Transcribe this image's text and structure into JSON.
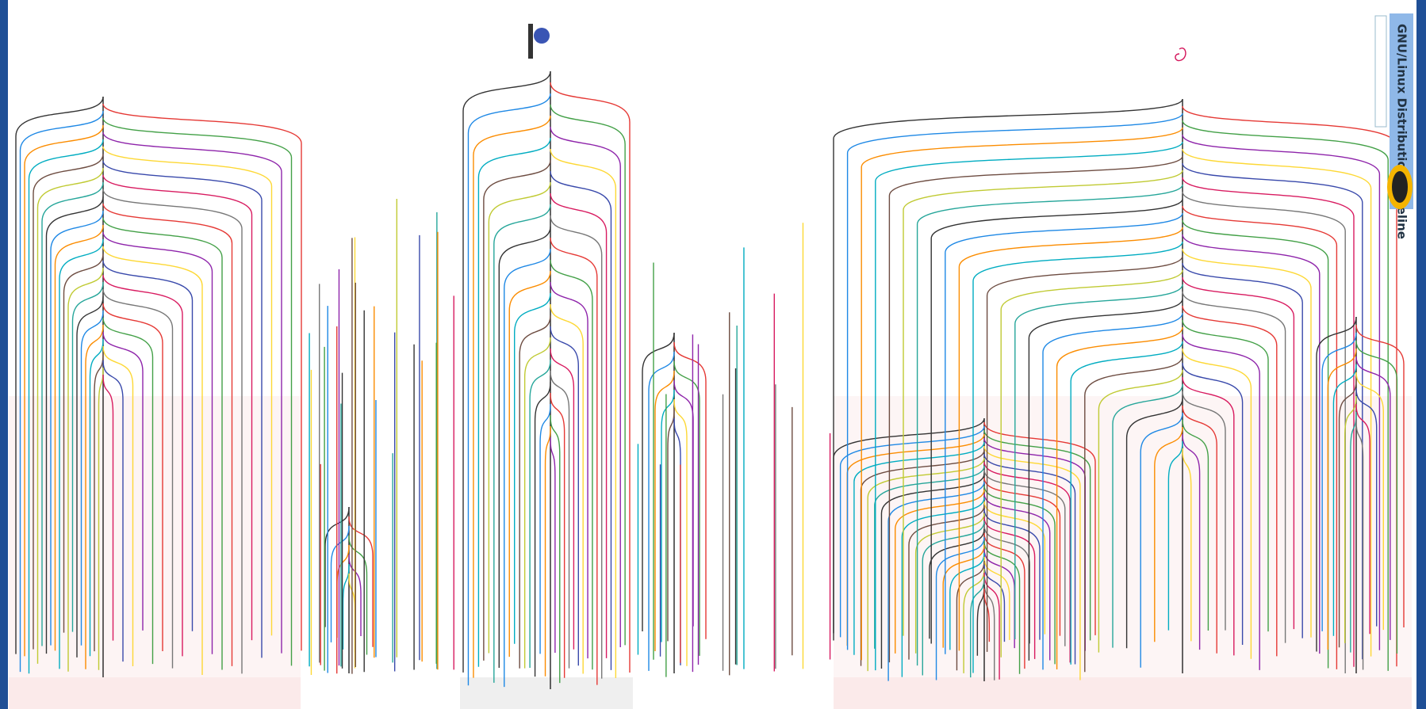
{
  "header": {
    "title": "GNU/Linux Distribution Timeline"
  }
}
